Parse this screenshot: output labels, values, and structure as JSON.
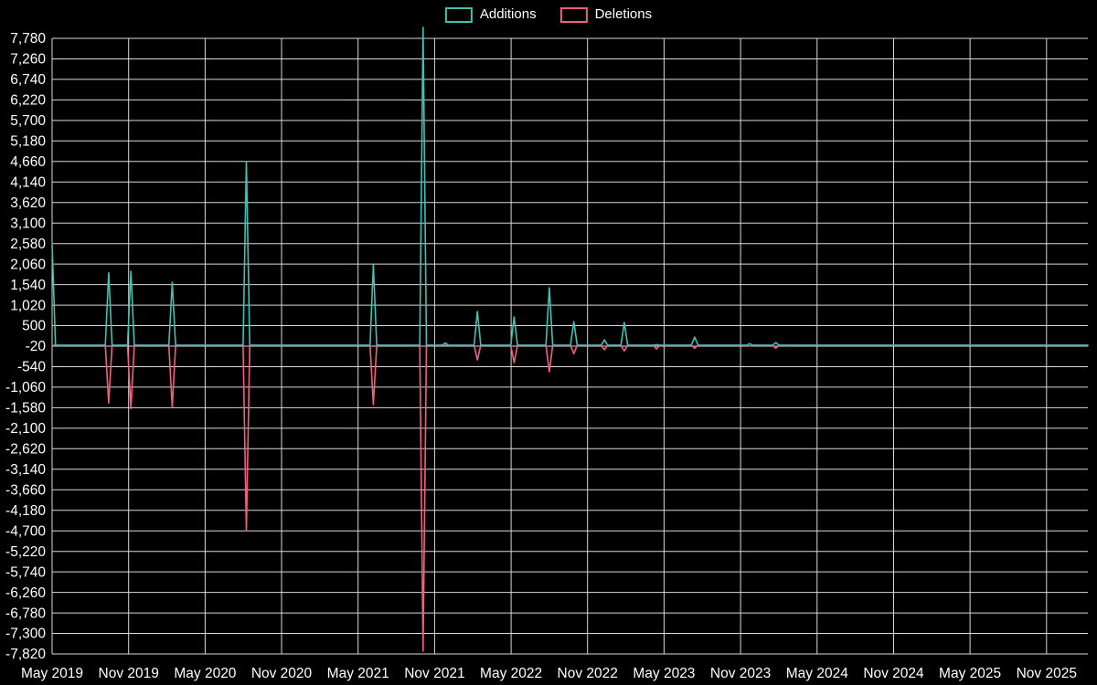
{
  "legend": {
    "items": [
      {
        "label": "Additions",
        "color": "#3fc1b4"
      },
      {
        "label": "Deletions",
        "color": "#f2607c"
      }
    ]
  },
  "chart_data": {
    "type": "line",
    "title": "",
    "xlabel": "",
    "ylabel": "",
    "background": "#000000",
    "grid_color": "#ffffff",
    "text_color": "#ffffff",
    "legend_position": "top-center",
    "grid": true,
    "x_tick_labels": [
      "May 2019",
      "Nov 2019",
      "May 2020",
      "Nov 2020",
      "May 2021",
      "Nov 2021",
      "May 2022",
      "Nov 2022",
      "May 2023",
      "Nov 2023",
      "May 2024",
      "Nov 2024",
      "May 2025",
      "Nov 2025"
    ],
    "x_tick_positions": [
      2019.33,
      2019.83,
      2020.33,
      2020.83,
      2021.33,
      2021.83,
      2022.33,
      2022.83,
      2023.33,
      2023.83,
      2024.33,
      2024.83,
      2025.33,
      2025.83
    ],
    "x_domain": [
      2019.33,
      2026.1
    ],
    "y_tick_labels": [
      "7,780",
      "7,260",
      "6,740",
      "6,220",
      "5,700",
      "5,180",
      "4,660",
      "4,140",
      "3,620",
      "3,100",
      "2,580",
      "2,060",
      "1,540",
      "1,020",
      "500",
      "-20",
      "-540",
      "-1,060",
      "-1,580",
      "-2,100",
      "-2,620",
      "-3,140",
      "-3,660",
      "-4,180",
      "-4,700",
      "-5,220",
      "-5,740",
      "-6,260",
      "-6,780",
      "-7,300",
      "-7,820"
    ],
    "y_tick_values": [
      7780,
      7260,
      6740,
      6220,
      5700,
      5180,
      4660,
      4140,
      3620,
      3100,
      2580,
      2060,
      1540,
      1020,
      500,
      -20,
      -540,
      -1060,
      -1580,
      -2100,
      -2620,
      -3140,
      -3660,
      -4180,
      -4700,
      -5220,
      -5740,
      -6260,
      -6780,
      -7300,
      -7820
    ],
    "ylim": [
      -7820,
      7780
    ],
    "baseline": 0,
    "spike_half_width": 0.022,
    "series_meta": [
      {
        "name": "Additions",
        "key": "additions",
        "color": "#3fc1b4"
      },
      {
        "name": "Deletions",
        "key": "deletions",
        "color": "#f2607c"
      }
    ],
    "events": [
      {
        "date": "May 2019",
        "t": 2019.33,
        "additions": 2580,
        "deletions": 0
      },
      {
        "date": "Sep 2019",
        "t": 2019.7,
        "additions": 1840,
        "deletions": -1460
      },
      {
        "date": "Nov 2019",
        "t": 2019.845,
        "additions": 1880,
        "deletions": -1600
      },
      {
        "date": "Feb 2020",
        "t": 2020.115,
        "additions": 1600,
        "deletions": -1570
      },
      {
        "date": "Aug 2020",
        "t": 2020.6,
        "additions": 4660,
        "deletions": -4700
      },
      {
        "date": "Jun 2021",
        "t": 2021.43,
        "additions": 2040,
        "deletions": -1500
      },
      {
        "date": "Oct 2021",
        "t": 2021.755,
        "additions": 8060,
        "deletions": -7750
      },
      {
        "date": "Nov 2021",
        "t": 2021.9,
        "additions": 60,
        "deletions": 0
      },
      {
        "date": "Feb 2022",
        "t": 2022.11,
        "additions": 860,
        "deletions": -370
      },
      {
        "date": "May 2022",
        "t": 2022.35,
        "additions": 720,
        "deletions": -440
      },
      {
        "date": "Aug 2022",
        "t": 2022.58,
        "additions": 1460,
        "deletions": -670
      },
      {
        "date": "Oct 2022",
        "t": 2022.74,
        "additions": 600,
        "deletions": -210
      },
      {
        "date": "Dec 2022",
        "t": 2022.94,
        "additions": 140,
        "deletions": -110
      },
      {
        "date": "Jan 2023",
        "t": 2023.07,
        "additions": 580,
        "deletions": -140
      },
      {
        "date": "Mar 2023",
        "t": 2023.28,
        "additions": 20,
        "deletions": -90
      },
      {
        "date": "Jul 2023",
        "t": 2023.53,
        "additions": 210,
        "deletions": -70
      },
      {
        "date": "Nov 2023",
        "t": 2023.89,
        "additions": 40,
        "deletions": -20
      },
      {
        "date": "Jan 2024",
        "t": 2024.06,
        "additions": 70,
        "deletions": -70
      }
    ]
  }
}
